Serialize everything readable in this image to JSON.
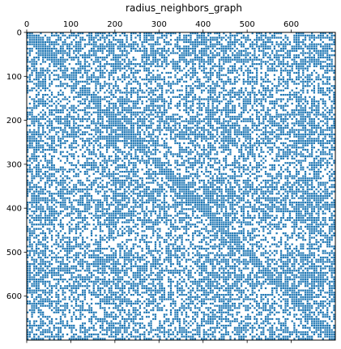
{
  "chart_data": {
    "type": "heatmap",
    "title": "radius_neighbors_graph",
    "xlabel": "",
    "ylabel": "",
    "n_rows": 700,
    "n_cols": 700,
    "xlim": [
      0,
      700
    ],
    "ylim": [
      700,
      0
    ],
    "x_ticks": [
      0,
      100,
      200,
      300,
      400,
      500,
      600
    ],
    "y_ticks": [
      0,
      100,
      200,
      300,
      400,
      500,
      600
    ],
    "x_tick_position": "top",
    "marker_color": "#1f77b4",
    "background_color": "#ffffff",
    "grid": false,
    "legend": "none"
  }
}
